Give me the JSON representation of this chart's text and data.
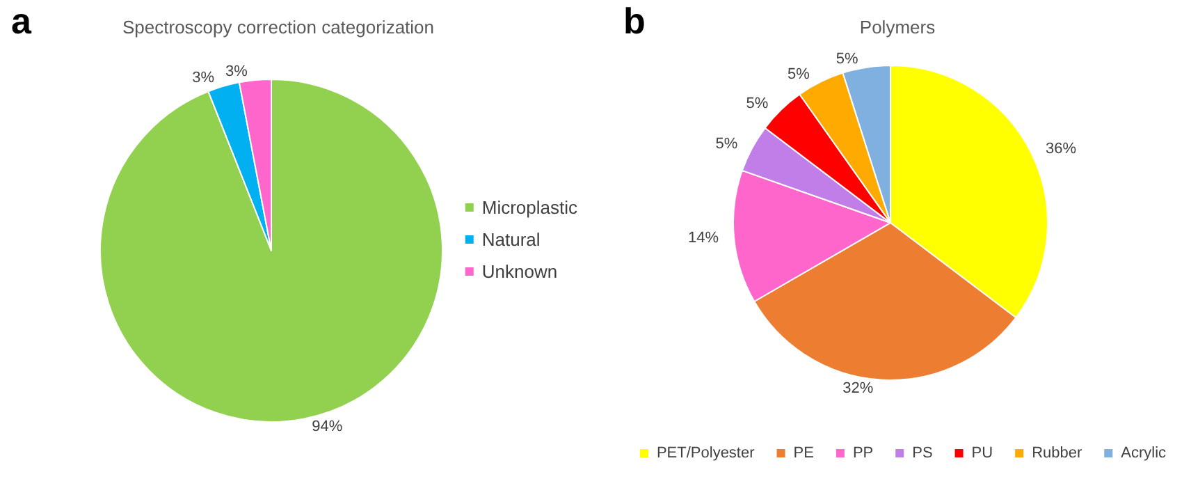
{
  "chart_data": [
    {
      "type": "pie",
      "title": "Spectroscopy correction categorization",
      "annotations": [
        "a"
      ],
      "categories": [
        "Microplastic",
        "Natural",
        "Unknown"
      ],
      "values": [
        94,
        3,
        3
      ],
      "value_labels": [
        "94%",
        "3%",
        "3%"
      ],
      "colors": [
        "#92d050",
        "#00b0f0",
        "#ff66cc"
      ],
      "legend": "right"
    },
    {
      "type": "pie",
      "title": "Polymers",
      "annotations": [
        "b"
      ],
      "categories": [
        "PET/Polyester",
        "PE",
        "PP",
        "PS",
        "PU",
        "Rubber",
        "Acrylic"
      ],
      "values": [
        36,
        32,
        14,
        5,
        5,
        5,
        5
      ],
      "value_labels": [
        "36%",
        "32%",
        "14%",
        "5%",
        "5%",
        "5%",
        "5%"
      ],
      "colors": [
        "#ffff00",
        "#ed7d31",
        "#ff66cc",
        "#c27ee8",
        "#ff0000",
        "#ffaa00",
        "#7fb0e0"
      ],
      "legend": "bottom"
    }
  ]
}
